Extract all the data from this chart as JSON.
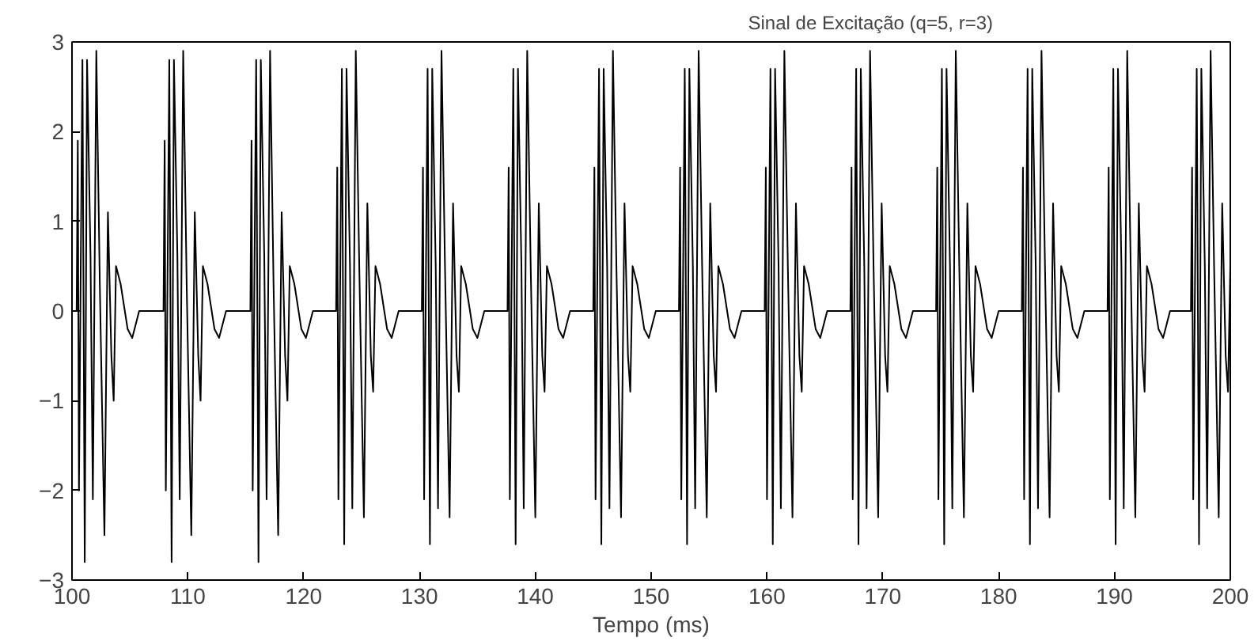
{
  "chart_data": {
    "type": "line",
    "title": "Sinal de Excitação (q=5, r=3)",
    "xlabel": "Tempo (ms)",
    "xlim": [
      100,
      200
    ],
    "xticks": [
      100,
      110,
      120,
      130,
      140,
      150,
      160,
      170,
      180,
      190,
      200
    ],
    "ylim": [
      -3,
      3
    ],
    "yticks": [
      -3,
      -2,
      -1,
      0,
      1,
      2,
      3
    ],
    "grid": false,
    "marker": "none",
    "line_style": "solid",
    "series": [
      {
        "color": "#000000",
        "x": [
          100,
          100.4,
          100.5,
          100.6,
          100.9,
          101.1,
          101.3,
          101.6,
          101.8,
          102.1,
          102.4,
          102.8,
          103.1,
          103.4,
          103.6,
          103.8,
          104.2,
          104.8,
          105.2,
          105.8,
          107.9,
          108,
          108.1,
          108.4,
          108.6,
          108.8,
          109.1,
          109.3,
          109.6,
          109.9,
          110.3,
          110.6,
          110.9,
          111.1,
          111.3,
          111.7,
          112.3,
          112.7,
          113.3,
          115.4,
          115.5,
          115.6,
          115.9,
          116.1,
          116.3,
          116.6,
          116.8,
          117.1,
          117.4,
          117.8,
          118.1,
          118.4,
          118.6,
          118.8,
          119.2,
          119.8,
          120.2,
          120.8,
          122.8,
          122.9,
          123,
          123.3,
          123.5,
          123.7,
          124,
          124.2,
          124.5,
          124.8,
          125.2,
          125.5,
          125.8,
          126,
          126.2,
          126.6,
          127.2,
          127.6,
          128.2,
          130.2,
          130.3,
          130.4,
          130.7,
          130.9,
          131.1,
          131.4,
          131.6,
          131.9,
          132.2,
          132.6,
          132.9,
          133.2,
          133.4,
          133.6,
          134,
          134.6,
          135,
          135.6,
          137.6,
          137.7,
          137.8,
          138.1,
          138.3,
          138.5,
          138.8,
          139,
          139.3,
          139.6,
          140,
          140.3,
          140.6,
          140.8,
          141,
          141.4,
          142,
          142.4,
          143,
          145,
          145.1,
          145.2,
          145.5,
          145.7,
          145.9,
          146.2,
          146.4,
          146.7,
          147,
          147.4,
          147.7,
          148,
          148.2,
          148.4,
          148.8,
          149.4,
          149.8,
          150.4,
          152.4,
          152.5,
          152.6,
          152.9,
          153.1,
          153.3,
          153.6,
          153.8,
          154.1,
          154.4,
          154.8,
          155.1,
          155.4,
          155.6,
          155.8,
          156.2,
          156.8,
          157.2,
          157.8,
          159.8,
          159.9,
          160,
          160.3,
          160.5,
          160.7,
          161,
          161.2,
          161.5,
          161.8,
          162.2,
          162.5,
          162.8,
          163,
          163.2,
          163.6,
          164.2,
          164.6,
          165.2,
          167.2,
          167.3,
          167.4,
          167.7,
          167.9,
          168.1,
          168.4,
          168.6,
          168.9,
          169.2,
          169.6,
          169.9,
          170.2,
          170.4,
          170.6,
          171,
          171.6,
          172,
          172.6,
          174.6,
          174.7,
          174.8,
          175.1,
          175.3,
          175.5,
          175.8,
          176,
          176.3,
          176.6,
          177,
          177.3,
          177.6,
          177.8,
          178,
          178.4,
          179,
          179.4,
          180,
          182,
          182.1,
          182.2,
          182.5,
          182.7,
          182.9,
          183.2,
          183.4,
          183.7,
          184,
          184.4,
          184.7,
          185,
          185.2,
          185.4,
          185.8,
          186.4,
          186.8,
          187.4,
          189.4,
          189.5,
          189.6,
          189.9,
          190.1,
          190.3,
          190.6,
          190.8,
          191.1,
          191.4,
          191.8,
          192.1,
          192.4,
          192.6,
          192.8,
          193.2,
          193.8,
          194.2,
          194.8,
          196.6,
          196.7,
          196.8,
          197.1,
          197.3,
          197.5,
          197.8,
          198,
          198.3,
          198.6,
          199,
          199.3,
          199.6,
          199.8,
          200
        ],
        "values": [
          0,
          0,
          1.9,
          -2.0,
          2.8,
          -2.8,
          2.8,
          0.6,
          -2.1,
          2.9,
          0.3,
          -2.5,
          1.1,
          -0.5,
          -1.0,
          0.5,
          0.3,
          -0.2,
          -0.3,
          0,
          0,
          1.9,
          -2.0,
          2.8,
          -2.8,
          2.8,
          0.6,
          -2.1,
          2.9,
          0.3,
          -2.5,
          1.1,
          -0.5,
          -1.0,
          0.5,
          0.3,
          -0.2,
          -0.3,
          0,
          0,
          1.9,
          -2.0,
          2.8,
          -2.8,
          2.8,
          0.6,
          -2.1,
          2.9,
          0.3,
          -2.5,
          1.1,
          -0.5,
          -1.0,
          0.5,
          0.3,
          -0.2,
          -0.3,
          0,
          0,
          1.6,
          -2.1,
          2.7,
          -2.6,
          2.7,
          0.5,
          -2.2,
          2.9,
          0.5,
          -2.3,
          1.2,
          -0.5,
          -0.9,
          0.5,
          0.3,
          -0.2,
          -0.3,
          0,
          0,
          1.6,
          -2.1,
          2.7,
          -2.6,
          2.7,
          0.5,
          -2.2,
          2.9,
          0.5,
          -2.3,
          1.2,
          -0.5,
          -0.9,
          0.5,
          0.3,
          -0.2,
          -0.3,
          0,
          0,
          1.6,
          -2.1,
          2.7,
          -2.6,
          2.7,
          0.5,
          -2.2,
          2.9,
          0.5,
          -2.3,
          1.2,
          -0.5,
          -0.9,
          0.5,
          0.3,
          -0.2,
          -0.3,
          0,
          0,
          1.6,
          -2.1,
          2.7,
          -2.6,
          2.7,
          0.5,
          -2.2,
          2.9,
          0.5,
          -2.3,
          1.2,
          -0.5,
          -0.9,
          0.5,
          0.3,
          -0.2,
          -0.3,
          0,
          0,
          1.6,
          -2.1,
          2.7,
          -2.6,
          2.7,
          0.5,
          -2.2,
          2.9,
          0.5,
          -2.3,
          1.2,
          -0.5,
          -0.9,
          0.5,
          0.3,
          -0.2,
          -0.3,
          0,
          0,
          1.6,
          -2.1,
          2.7,
          -2.6,
          2.7,
          0.5,
          -2.2,
          2.9,
          0.5,
          -2.3,
          1.2,
          -0.5,
          -0.9,
          0.5,
          0.3,
          -0.2,
          -0.3,
          0,
          0,
          1.6,
          -2.1,
          2.7,
          -2.6,
          2.7,
          0.5,
          -2.2,
          2.9,
          0.5,
          -2.3,
          1.2,
          -0.5,
          -0.9,
          0.5,
          0.3,
          -0.2,
          -0.3,
          0,
          0,
          1.6,
          -2.1,
          2.7,
          -2.6,
          2.7,
          0.5,
          -2.2,
          2.9,
          0.5,
          -2.3,
          1.2,
          -0.5,
          -0.9,
          0.5,
          0.3,
          -0.2,
          -0.3,
          0,
          0,
          1.6,
          -2.1,
          2.7,
          -2.6,
          2.7,
          0.5,
          -2.2,
          2.9,
          0.5,
          -2.3,
          1.2,
          -0.5,
          -0.9,
          0.5,
          0.3,
          -0.2,
          -0.3,
          0,
          0,
          1.6,
          -2.1,
          2.7,
          -2.6,
          2.7,
          0.5,
          -2.2,
          2.9,
          0.5,
          -2.3,
          1.2,
          -0.5,
          -0.9,
          0.5,
          0.3,
          -0.2,
          -0.3,
          0,
          0,
          1.6,
          -2.1,
          2.7,
          -2.6,
          2.7,
          0.5,
          -2.2,
          2.9,
          0.5,
          -2.3,
          1.2,
          -0.5,
          -0.9,
          0.5
        ]
      }
    ]
  }
}
